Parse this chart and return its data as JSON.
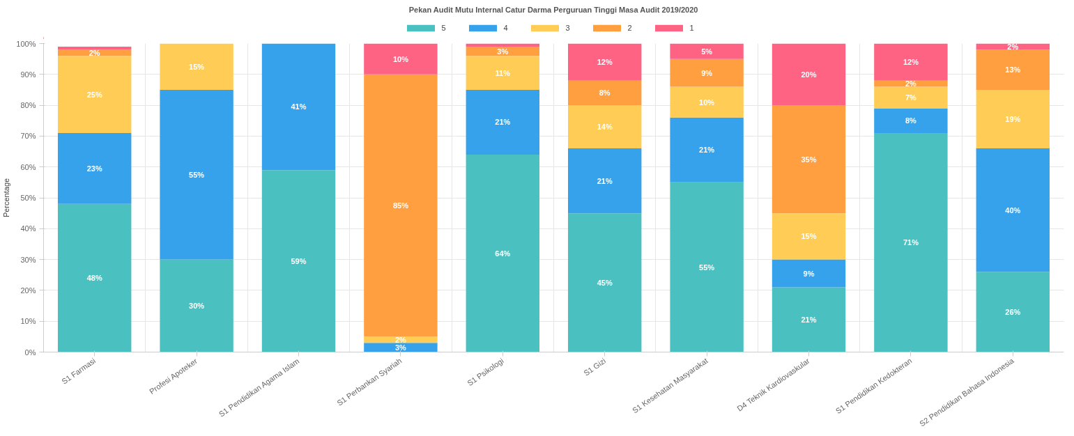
{
  "chart_data": {
    "type": "bar",
    "stacked": true,
    "title": "Pekan Audit Mutu Internal Catur Darma Perguruan Tinggi Masa Audit 2019/2020",
    "ylabel": "Percentage",
    "categories": [
      "S1 Farmasi",
      "Profesi Apoteker",
      "S1 Pendidikan Agama Islam",
      "S1 Perbankan Syariah",
      "S1 Psikologi",
      "S1 Gizi",
      "S1 Kesehatan Masyarakat",
      "D4 Teknik Kardiovaskular",
      "S1 Pendidikan Kedokteran",
      "S2 Pendidikan Bahasa Indonesia"
    ],
    "series": [
      {
        "name": "5",
        "color": "#4bc0c0",
        "values": [
          48,
          30,
          59,
          0,
          64,
          45,
          55,
          21,
          71,
          26
        ],
        "value_labels": [
          "48%",
          "30%",
          "59%",
          null,
          "64%",
          "45%",
          "55%",
          "21%",
          "71%",
          "26%"
        ]
      },
      {
        "name": "4",
        "color": "#36a2eb",
        "values": [
          23,
          55,
          41,
          3,
          21,
          21,
          21,
          9,
          8,
          40
        ],
        "value_labels": [
          "23%",
          "55%",
          "41%",
          "3%",
          "21%",
          "21%",
          "21%",
          "9%",
          "8%",
          "40%"
        ]
      },
      {
        "name": "3",
        "color": "#ffcd56",
        "values": [
          25,
          15,
          0,
          2,
          11,
          14,
          10,
          15,
          7,
          19
        ],
        "value_labels": [
          "25%",
          "15%",
          null,
          "2%",
          "11%",
          "14%",
          "10%",
          "15%",
          "7%",
          "19%"
        ]
      },
      {
        "name": "2",
        "color": "#ff9f40",
        "values": [
          2,
          0,
          0,
          85,
          3,
          8,
          9,
          35,
          2,
          13
        ],
        "value_labels": [
          "2%",
          null,
          null,
          "85%",
          "3%",
          "8%",
          "9%",
          "35%",
          "2%",
          "13%"
        ]
      },
      {
        "name": "1",
        "color": "#ff6384",
        "values": [
          1,
          0,
          0,
          10,
          1,
          12,
          5,
          20,
          12,
          2
        ],
        "value_labels": [
          null,
          null,
          null,
          "10%",
          null,
          "12%",
          "5%",
          "20%",
          "12%",
          "2%"
        ]
      }
    ],
    "ylim": [
      0,
      100
    ],
    "yticks": [
      {
        "value": 0,
        "label": "0%"
      },
      {
        "value": 10,
        "label": "10%"
      },
      {
        "value": 20,
        "label": "20%"
      },
      {
        "value": 30,
        "label": "30%"
      },
      {
        "value": 40,
        "label": "40%"
      },
      {
        "value": 50,
        "label": "50%"
      },
      {
        "value": 60,
        "label": "60%"
      },
      {
        "value": 70,
        "label": "70%"
      },
      {
        "value": 80,
        "label": "80%"
      },
      {
        "value": 90,
        "label": "90%"
      },
      {
        "value": 100,
        "label": "100%"
      }
    ],
    "grid": true,
    "legend": "top"
  }
}
